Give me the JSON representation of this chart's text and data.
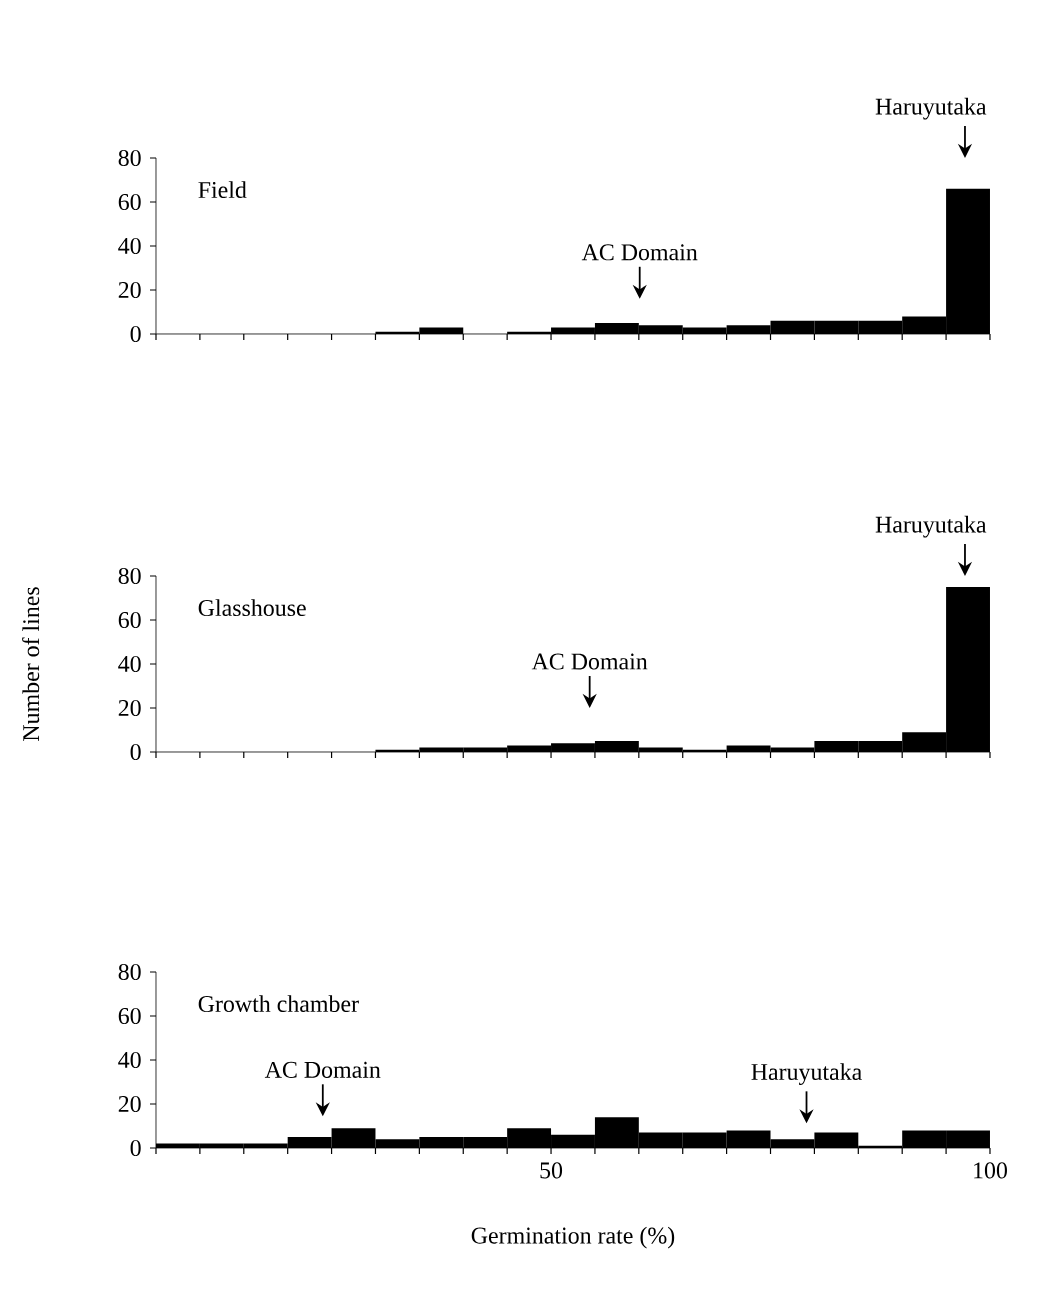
{
  "chart_data": [
    {
      "type": "histogram",
      "title": "Field",
      "bins": [
        5,
        10,
        15,
        20,
        25,
        30,
        35,
        40,
        45,
        50,
        55,
        60,
        65,
        70,
        75,
        80,
        85,
        90,
        95,
        100
      ],
      "values": [
        0,
        0,
        0,
        0,
        0,
        1,
        3,
        0,
        1,
        3,
        5,
        4,
        3,
        4,
        6,
        6,
        6,
        8,
        66
      ],
      "color": "#000000",
      "xlim": [
        5,
        100
      ],
      "xticks": [
        {
          "value": 5,
          "label": null
        },
        {
          "value": 10,
          "label": null
        },
        {
          "value": 15,
          "label": null
        },
        {
          "value": 20,
          "label": null
        },
        {
          "value": 25,
          "label": null
        },
        {
          "value": 30,
          "label": null
        },
        {
          "value": 35,
          "label": null
        },
        {
          "value": 40,
          "label": null
        },
        {
          "value": 45,
          "label": null
        },
        50,
        {
          "value": 55,
          "label": null
        },
        {
          "value": 60,
          "label": null
        },
        {
          "value": 65,
          "label": null
        },
        {
          "value": 70,
          "label": null
        },
        {
          "value": 75,
          "label": null
        },
        {
          "value": 80,
          "label": null
        },
        {
          "value": 85,
          "label": null
        },
        {
          "value": 90,
          "label": null
        },
        {
          "value": 95,
          "label": null
        },
        100
      ],
      "ylim": [
        0,
        80
      ],
      "yticks": [
        0,
        20,
        40,
        60,
        80
      ],
      "tick_labels": "y",
      "annotations": [
        "AC Domain",
        "Haruyutaka"
      ]
    },
    {
      "type": "histogram",
      "title": "Glasshouse",
      "ylabel": "Number of lines",
      "bins": [
        5,
        10,
        15,
        20,
        25,
        30,
        35,
        40,
        45,
        50,
        55,
        60,
        65,
        70,
        75,
        80,
        85,
        90,
        95,
        100
      ],
      "values": [
        0,
        0,
        0,
        0,
        0,
        1,
        2,
        2,
        3,
        4,
        5,
        2,
        1,
        3,
        2,
        5,
        5,
        9,
        75
      ],
      "color": "#000000",
      "xlim": [
        5,
        100
      ],
      "xticks": [
        {
          "value": 5,
          "label": null
        },
        {
          "value": 10,
          "label": null
        },
        {
          "value": 15,
          "label": null
        },
        {
          "value": 20,
          "label": null
        },
        {
          "value": 25,
          "label": null
        },
        {
          "value": 30,
          "label": null
        },
        {
          "value": 35,
          "label": null
        },
        {
          "value": 40,
          "label": null
        },
        {
          "value": 45,
          "label": null
        },
        50,
        {
          "value": 55,
          "label": null
        },
        {
          "value": 60,
          "label": null
        },
        {
          "value": 65,
          "label": null
        },
        {
          "value": 70,
          "label": null
        },
        {
          "value": 75,
          "label": null
        },
        {
          "value": 80,
          "label": null
        },
        {
          "value": 85,
          "label": null
        },
        {
          "value": 90,
          "label": null
        },
        {
          "value": 95,
          "label": null
        },
        100
      ],
      "ylim": [
        0,
        80
      ],
      "yticks": [
        0,
        20,
        40,
        60,
        80
      ],
      "tick_labels": "y",
      "annotations": [
        "AC Domain",
        "Haruyutaka"
      ]
    },
    {
      "type": "histogram",
      "title": "Growth chamber",
      "xlabel": "Germination rate (%)",
      "bins": [
        5,
        10,
        15,
        20,
        25,
        30,
        35,
        40,
        45,
        50,
        55,
        60,
        65,
        70,
        75,
        80,
        85,
        90,
        95,
        100
      ],
      "values": [
        2,
        2,
        2,
        5,
        9,
        4,
        5,
        5,
        9,
        6,
        14,
        7,
        7,
        8,
        4,
        7,
        1,
        8,
        8
      ],
      "color": "#000000",
      "xlim": [
        5,
        100
      ],
      "xticks": [
        {
          "value": 5,
          "label": null
        },
        {
          "value": 10,
          "label": null
        },
        {
          "value": 15,
          "label": null
        },
        {
          "value": 20,
          "label": null
        },
        {
          "value": 25,
          "label": null
        },
        {
          "value": 30,
          "label": null
        },
        {
          "value": 35,
          "label": null
        },
        {
          "value": 40,
          "label": null
        },
        {
          "value": 45,
          "label": null
        },
        50,
        {
          "value": 55,
          "label": null
        },
        {
          "value": 60,
          "label": null
        },
        {
          "value": 65,
          "label": null
        },
        {
          "value": 70,
          "label": null
        },
        {
          "value": 75,
          "label": null
        },
        {
          "value": 80,
          "label": null
        },
        {
          "value": 85,
          "label": null
        },
        {
          "value": 90,
          "label": null
        },
        {
          "value": 95,
          "label": null
        },
        100
      ],
      "ylim": [
        0,
        80
      ],
      "yticks": [
        0,
        20,
        40,
        60,
        80
      ],
      "annotations": [
        "AC Domain",
        "Haruyutaka"
      ]
    }
  ]
}
